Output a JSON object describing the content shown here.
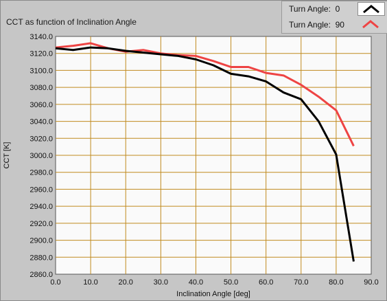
{
  "chart_title": "CCT as function of Inclination Angle",
  "legend": [
    {
      "label": "Turn Angle:",
      "value": "0",
      "color": "#000000"
    },
    {
      "label": "Turn Angle:",
      "value": "90",
      "color": "#ee4444"
    }
  ],
  "chart_data": {
    "type": "line",
    "title": "CCT as function of Inclination Angle",
    "xlabel": "Inclination Angle [deg]",
    "ylabel": "CCT [K]",
    "xlim": [
      0,
      90
    ],
    "ylim": [
      2860,
      3140
    ],
    "x_ticks": [
      "0.0",
      "10.0",
      "20.0",
      "30.0",
      "40.0",
      "50.0",
      "60.0",
      "70.0",
      "80.0",
      "90.0"
    ],
    "y_ticks": [
      "2860.0",
      "2880.0",
      "2900.0",
      "2920.0",
      "2940.0",
      "2960.0",
      "2980.0",
      "3000.0",
      "3020.0",
      "3040.0",
      "3060.0",
      "3080.0",
      "3100.0",
      "3120.0",
      "3140.0"
    ],
    "grid": true,
    "series": [
      {
        "name": "Turn Angle: 0",
        "color": "#000000",
        "x": [
          0,
          5,
          10,
          15,
          20,
          25,
          30,
          35,
          40,
          45,
          50,
          55,
          60,
          65,
          70,
          75,
          80,
          85
        ],
        "y": [
          3126,
          3124,
          3127,
          3126,
          3123,
          3121,
          3119,
          3117,
          3113,
          3106,
          3096,
          3093,
          3087,
          3074,
          3066,
          3040,
          3001,
          2875
        ]
      },
      {
        "name": "Turn Angle: 90",
        "color": "#ee4444",
        "x": [
          0,
          5,
          10,
          15,
          20,
          25,
          30,
          35,
          40,
          45,
          50,
          55,
          60,
          65,
          70,
          75,
          80,
          85
        ],
        "y": [
          3127,
          3129,
          3132,
          3126,
          3122,
          3124,
          3120,
          3118,
          3117,
          3111,
          3104,
          3104,
          3097,
          3094,
          3083,
          3069,
          3053,
          3011
        ]
      }
    ]
  }
}
